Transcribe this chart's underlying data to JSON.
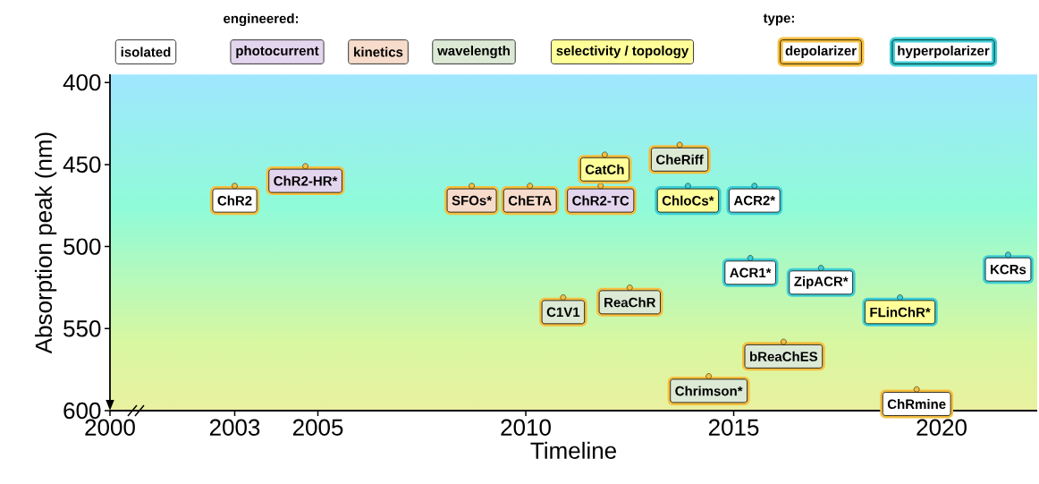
{
  "chart_data": {
    "type": "scatter",
    "xlabel": "Timeline",
    "ylabel": "Absorption peak (nm)",
    "legend_title": "engineered:",
    "legend": "top",
    "xlim": [
      2000,
      2022.3
    ],
    "xticks": [
      2000,
      2003,
      2005,
      2010,
      2015,
      2020
    ],
    "ylim": [
      600,
      395
    ],
    "yticks": [
      400,
      450,
      500,
      550,
      600
    ],
    "annotations": [
      "type:",
      "depolarizer",
      "hyperpolarizer"
    ],
    "series": [
      {
        "name": "isolated",
        "color": "#ffffff",
        "colors": [
          "#f5bf3f",
          "#3ccfd6",
          "#3ccfd6",
          "#3ccfd6",
          "#3ccfd6",
          "#f5bf3f"
        ],
        "x": [
          2003,
          2015.5,
          2015.4,
          2017.1,
          2021.6,
          2019.4
        ],
        "values": [
          463,
          463,
          507,
          513,
          505,
          587
        ],
        "value_labels": [
          "ChR2",
          "ACR2*",
          "ACR1*",
          "ZipACR*",
          "KCRs",
          "ChRmine"
        ]
      },
      {
        "name": "photocurrent",
        "color": "#e4d5ee",
        "colors": [
          "#f5bf3f",
          "#f5bf3f"
        ],
        "x": [
          2004.7,
          2011.8
        ],
        "values": [
          451,
          463
        ],
        "value_labels": [
          "ChR2-HR*",
          "ChR2-TC"
        ]
      },
      {
        "name": "kinetics",
        "color": "#f8dccb",
        "colors": [
          "#f5bf3f",
          "#f5bf3f"
        ],
        "x": [
          2008.7,
          2010.1
        ],
        "values": [
          463,
          463
        ],
        "value_labels": [
          "SFOs*",
          "ChETA"
        ]
      },
      {
        "name": "wavelength",
        "color": "#dce9d5",
        "colors": [
          "#f5bf3f",
          "#f5bf3f",
          "#f5bf3f",
          "#f5bf3f",
          "#f5bf3f"
        ],
        "x": [
          2013.7,
          2010.9,
          2012.5,
          2016.2,
          2014.4
        ],
        "values": [
          438,
          531,
          525,
          558,
          579
        ],
        "value_labels": [
          "CheRiff",
          "C1V1",
          "ReaChR",
          "bReaChES",
          "Chrimson*"
        ]
      },
      {
        "name": "selectivity / topology",
        "color": "#ffff99",
        "colors": [
          "#f5bf3f",
          "#3ccfd6",
          "#3ccfd6"
        ],
        "x": [
          2011.9,
          2013.9,
          2019.0
        ],
        "values": [
          444,
          463,
          531
        ],
        "value_labels": [
          "CatCh",
          "ChloCs*",
          "FLinChR*"
        ]
      }
    ]
  }
}
